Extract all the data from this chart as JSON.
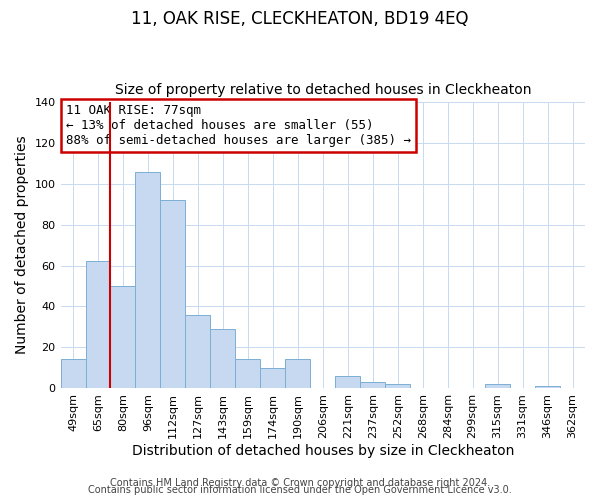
{
  "title": "11, OAK RISE, CLECKHEATON, BD19 4EQ",
  "subtitle": "Size of property relative to detached houses in Cleckheaton",
  "xlabel": "Distribution of detached houses by size in Cleckheaton",
  "ylabel": "Number of detached properties",
  "bar_labels": [
    "49sqm",
    "65sqm",
    "80sqm",
    "96sqm",
    "112sqm",
    "127sqm",
    "143sqm",
    "159sqm",
    "174sqm",
    "190sqm",
    "206sqm",
    "221sqm",
    "237sqm",
    "252sqm",
    "268sqm",
    "284sqm",
    "299sqm",
    "315sqm",
    "331sqm",
    "346sqm",
    "362sqm"
  ],
  "bar_values": [
    14,
    62,
    50,
    106,
    92,
    36,
    29,
    14,
    10,
    14,
    0,
    6,
    3,
    2,
    0,
    0,
    0,
    2,
    0,
    1,
    0
  ],
  "bar_color": "#c6d9f0",
  "bar_edge_color": "#7bafd4",
  "vline_color": "#cc0000",
  "vline_x": 1.5,
  "ylim": [
    0,
    140
  ],
  "yticks": [
    0,
    20,
    40,
    60,
    80,
    100,
    120,
    140
  ],
  "annotation_title": "11 OAK RISE: 77sqm",
  "annotation_line1": "← 13% of detached houses are smaller (55)",
  "annotation_line2": "88% of semi-detached houses are larger (385) →",
  "annotation_box_color": "#ffffff",
  "annotation_box_edge": "#cc0000",
  "footer_line1": "Contains HM Land Registry data © Crown copyright and database right 2024.",
  "footer_line2": "Contains public sector information licensed under the Open Government Licence v3.0.",
  "title_fontsize": 12,
  "subtitle_fontsize": 10,
  "axis_label_fontsize": 10,
  "tick_fontsize": 8,
  "footer_fontsize": 7,
  "annot_fontsize": 9
}
